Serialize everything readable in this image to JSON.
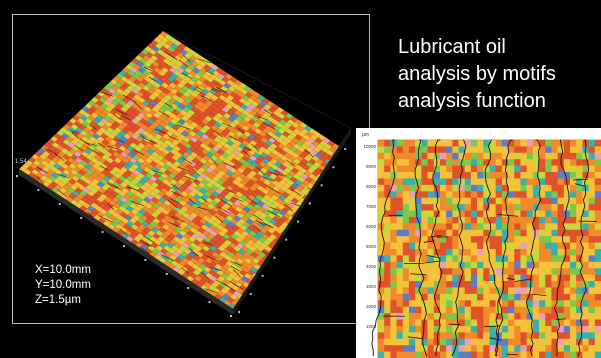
{
  "surface_3d": {
    "dimensions": [
      {
        "label": "X=10.0mm"
      },
      {
        "label": "Y=10.0mm"
      },
      {
        "label": "Z=1.5µm"
      }
    ],
    "z_axis_label": "1.54"
  },
  "caption": {
    "lines": [
      "Lubricant oil",
      "analysis by motifs",
      "analysis function"
    ]
  },
  "contour_map": {
    "y_ticks": [
      "10000",
      "9000",
      "8000",
      "7000",
      "6000",
      "5000",
      "4000",
      "3000",
      "2000",
      "1000"
    ],
    "unit_label": "µm"
  },
  "colors": {
    "background": "#000000",
    "text": "#ffffff",
    "surface_palette": [
      "#e0522a",
      "#f08a2a",
      "#f4c23a",
      "#c8d83a",
      "#7cc84a",
      "#3bb0a8",
      "#5a7ec8",
      "#e8a0b8"
    ]
  }
}
